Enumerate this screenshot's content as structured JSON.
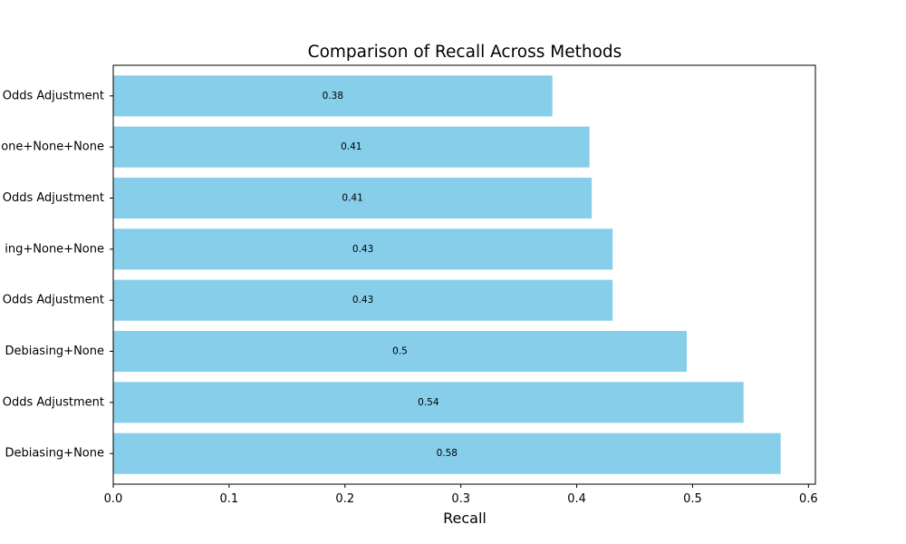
{
  "chart_data": {
    "type": "bar",
    "orientation": "horizontal",
    "title": "Comparison of Recall Across Methods",
    "xlabel": "Recall",
    "ylabel": "",
    "xlim": [
      0,
      0.606
    ],
    "xticks": [
      "0.0",
      "0.1",
      "0.2",
      "0.3",
      "0.4",
      "0.5",
      "0.6"
    ],
    "categories": [
      "Odds Adjustment",
      "one+None+None",
      "Odds Adjustment",
      "ing+None+None",
      "Odds Adjustment",
      "Debiasing+None",
      "Odds Adjustment",
      "Debiasing+None"
    ],
    "values": [
      0.379,
      0.411,
      0.413,
      0.431,
      0.431,
      0.495,
      0.544,
      0.576
    ],
    "data_labels": [
      "0.38",
      "0.41",
      "0.41",
      "0.43",
      "0.43",
      "0.5",
      "0.54",
      "0.58"
    ],
    "bar_color": "#87ceeb",
    "grid": false,
    "legend": "none"
  }
}
